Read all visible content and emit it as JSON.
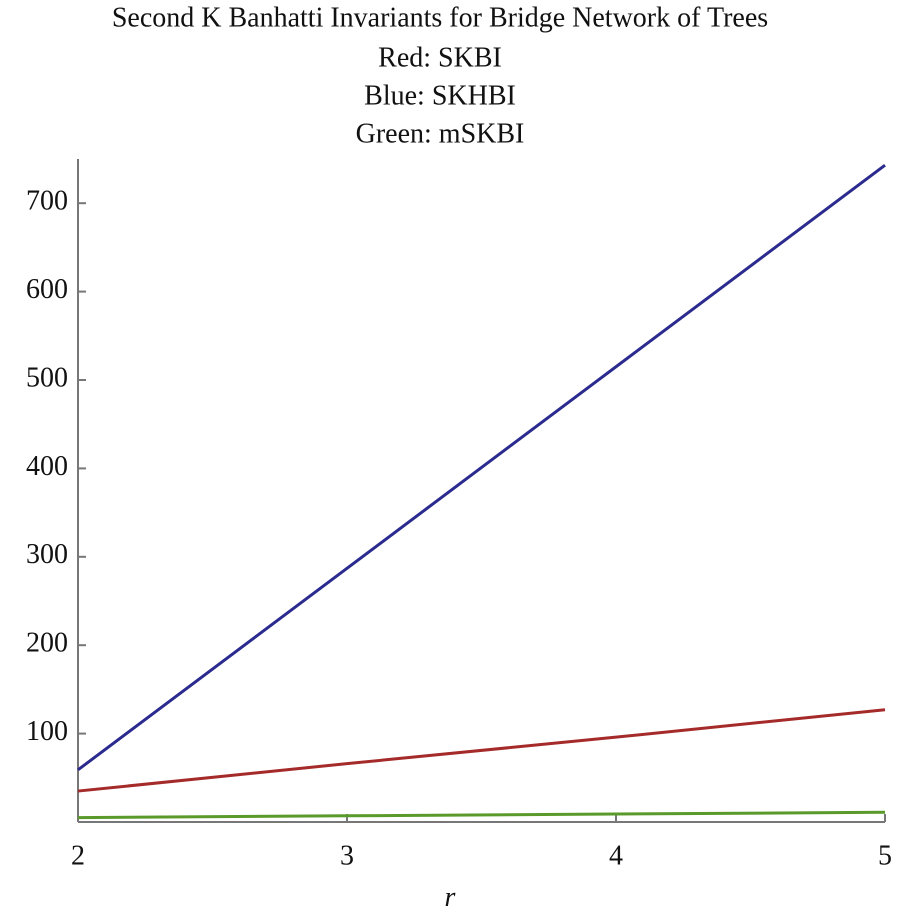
{
  "chart_data": {
    "type": "line",
    "title": "Second K Banhatti Invariants for Bridge Network of Trees",
    "subtitles": [
      "Red: SKBI",
      "Blue: SKHBI",
      "Green: mSKBI"
    ],
    "x_label": "r",
    "x": [
      2,
      3,
      4,
      5
    ],
    "series": [
      {
        "color": "#a52a2a",
        "values": [
          35,
          66,
          96,
          127
        ]
      },
      {
        "color": "#2b2b8f",
        "values": [
          59,
          287,
          515,
          743
        ]
      },
      {
        "color": "#5a9a2a",
        "values": [
          5,
          7,
          9,
          11
        ]
      }
    ],
    "xlim": [
      2,
      5
    ],
    "xticks": [
      2,
      3,
      4,
      5
    ],
    "ylim": [
      0,
      750
    ],
    "yticks": [
      100,
      200,
      300,
      400,
      500,
      600,
      700
    ]
  }
}
